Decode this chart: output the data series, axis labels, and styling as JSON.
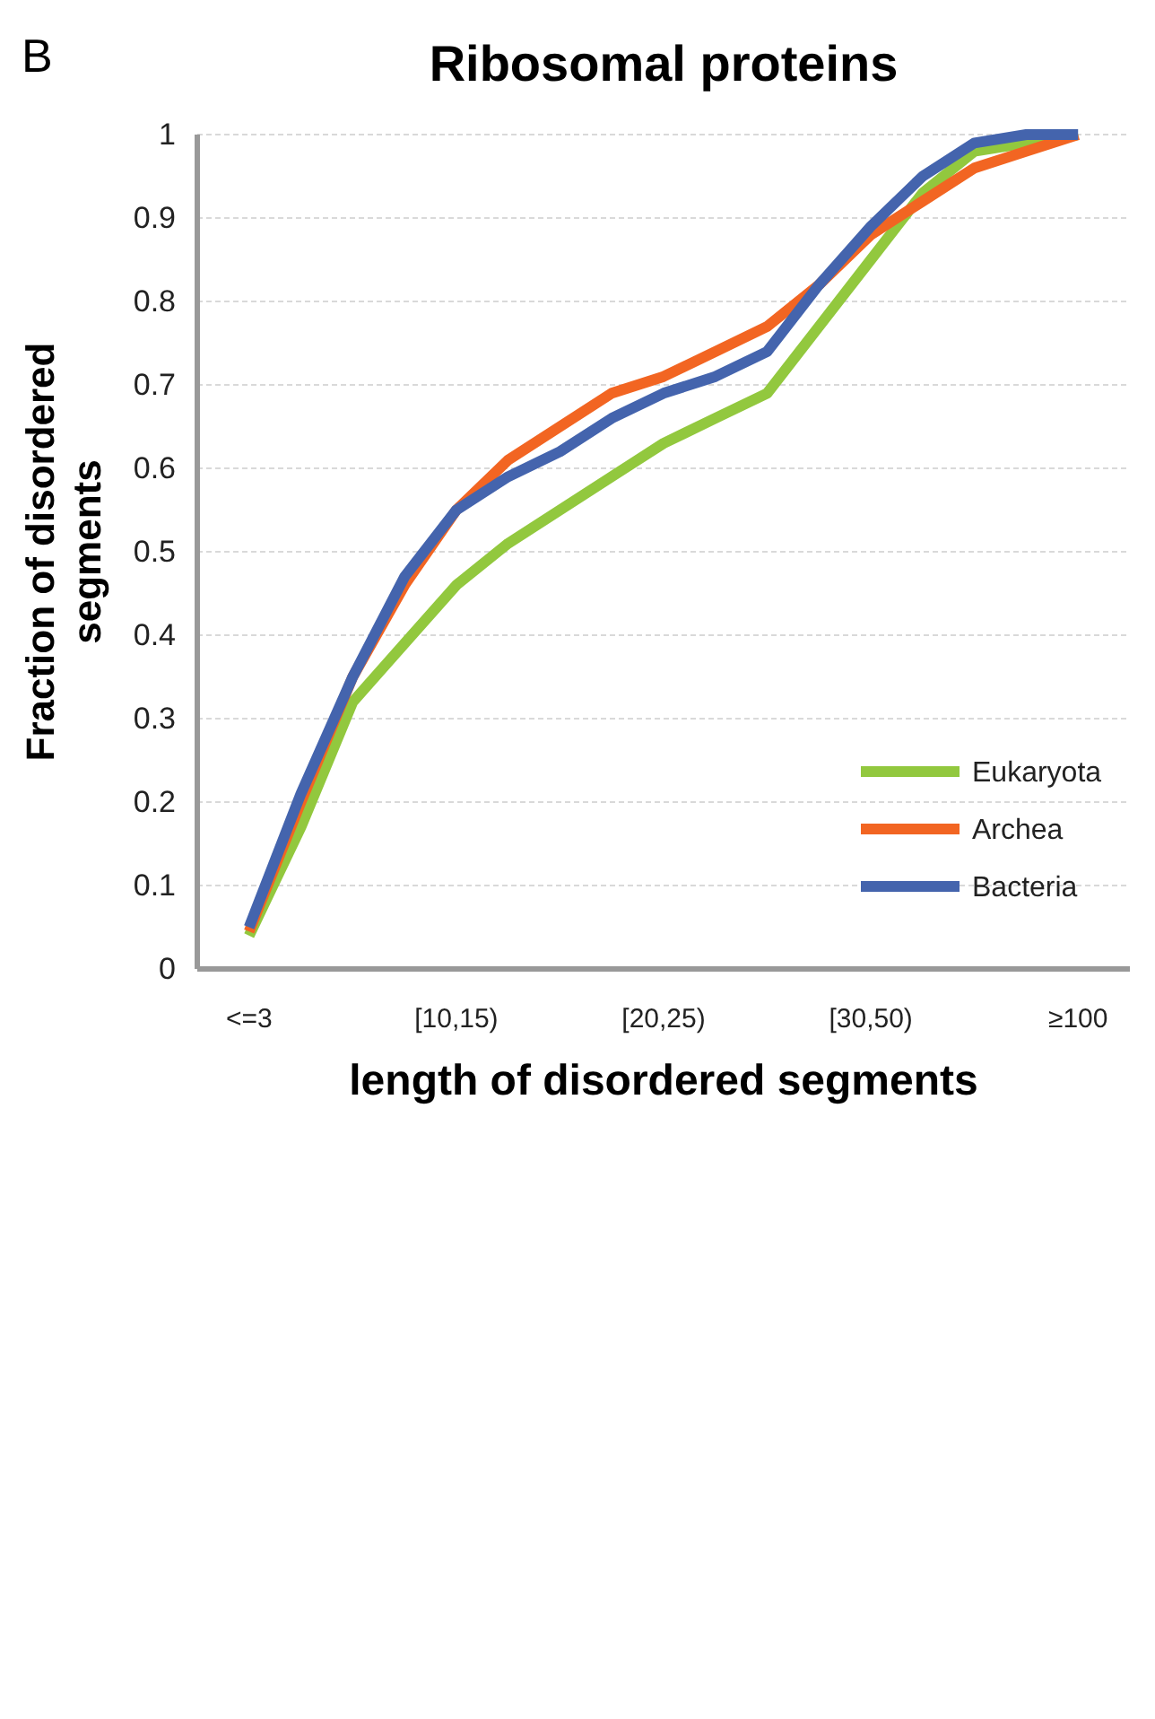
{
  "chart_data": {
    "type": "line",
    "title": "Ribosomal proteins",
    "xlabel": "length of disordered segments",
    "ylabel": "Fraction of disordered segments",
    "annotations": [
      "B"
    ],
    "categories": [
      "<=3",
      null,
      null,
      null,
      "[10,15)",
      null,
      null,
      null,
      "[20,25)",
      null,
      null,
      null,
      "[30,50)",
      null,
      null,
      null,
      "≥100"
    ],
    "series": [
      {
        "name": "Eukaryota",
        "color": "#92c83e",
        "values": [
          0.04,
          0.17,
          0.32,
          0.39,
          0.46,
          0.51,
          0.55,
          0.59,
          0.63,
          0.66,
          0.69,
          0.77,
          0.85,
          0.93,
          0.98,
          0.99,
          1.0
        ]
      },
      {
        "name": "Archea",
        "color": "#f26522",
        "values": [
          0.045,
          0.2,
          0.35,
          0.46,
          0.55,
          0.61,
          0.65,
          0.69,
          0.71,
          0.74,
          0.77,
          0.82,
          0.88,
          0.92,
          0.96,
          0.98,
          1.0
        ]
      },
      {
        "name": "Bacteria",
        "color": "#4464ad",
        "values": [
          0.05,
          0.21,
          0.35,
          0.47,
          0.55,
          0.59,
          0.62,
          0.66,
          0.69,
          0.71,
          0.74,
          0.82,
          0.89,
          0.95,
          0.99,
          1.0,
          1.0
        ]
      }
    ],
    "ylim": [
      0,
      1
    ],
    "yticks": [
      0,
      0.1,
      0.2,
      0.3,
      0.4,
      0.5,
      0.6,
      0.7,
      0.8,
      0.9,
      1
    ],
    "grid": "y",
    "legend": "bottom right",
    "marker": "none",
    "line_style": "solid"
  }
}
